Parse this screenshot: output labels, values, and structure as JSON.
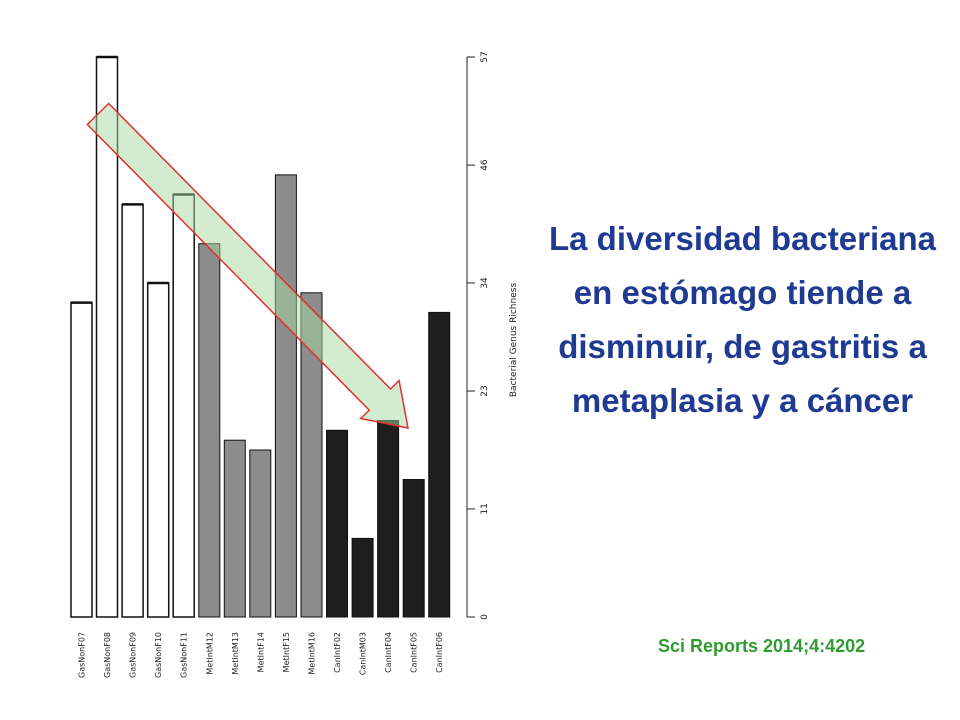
{
  "headline": "La diversidad bacteriana en estómago tiende a disminuir, de gastritis a metaplasia y a cáncer",
  "citation": "Sci Reports 2014;4:4202",
  "chart_data": {
    "type": "bar",
    "ylabel": "Bacterial Genus Richness",
    "ylim": [
      0,
      57
    ],
    "yticks": [
      0,
      11,
      23,
      34,
      46,
      57
    ],
    "y_axis_side": "right",
    "categories": [
      "GasNonF07",
      "GasNonF08",
      "GasNonF09",
      "GasNonF10",
      "GasNonF11",
      "MetIntM12",
      "MetIntM13",
      "MetIntF14",
      "MetIntF15",
      "MetIntM16",
      "CanIntF02",
      "CanIntM03",
      "CanIntF04",
      "CanIntF05",
      "CanIntF06"
    ],
    "values": [
      32,
      57,
      42,
      34,
      43,
      38,
      18,
      17,
      45,
      33,
      19,
      8,
      20,
      14,
      31
    ],
    "groups": [
      "gastritis",
      "gastritis",
      "gastritis",
      "gastritis",
      "gastritis",
      "metaplasia",
      "metaplasia",
      "metaplasia",
      "metaplasia",
      "metaplasia",
      "cancer",
      "cancer",
      "cancer",
      "cancer",
      "cancer"
    ],
    "group_colors": {
      "gastritis": "#ffffff",
      "metaplasia": "#8c8c8c",
      "cancer": "#1e1e1e"
    },
    "annotation": "arrow-trend-downward",
    "arrow_colors": {
      "fill": "#a8d8a0",
      "stroke": "#e03030"
    }
  }
}
